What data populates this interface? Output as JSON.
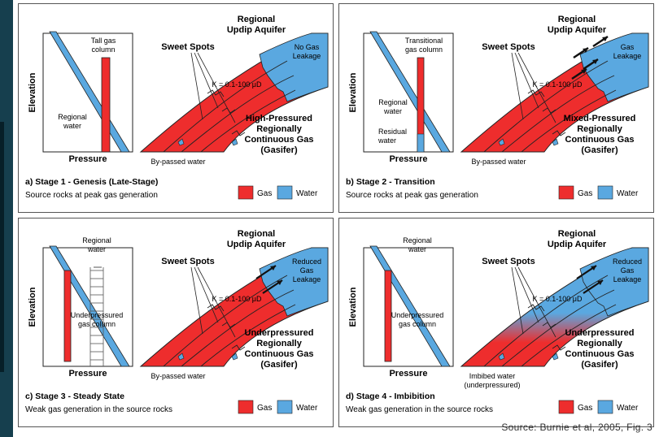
{
  "colors": {
    "gas": "#ee2d2d",
    "water": "#5aa8e0",
    "outline": "#333333",
    "background_strip": "#163f4e"
  },
  "source": "Source: Burnie et al, 2005, Fig. 3",
  "legend": {
    "gas": "Gas",
    "water": "Water"
  },
  "panels": [
    {
      "stage_title": "a) Stage 1 - Genesis (Late-Stage)",
      "subtitle": "Source rocks at peak gas generation",
      "inset_labels": {
        "elevation": "Elevation",
        "pressure": "Pressure",
        "column_1": "Tall gas",
        "column_2": "column",
        "water_1": "Regional",
        "water_2": "water"
      },
      "aquifer_1": "Regional",
      "aquifer_2": "Updip Aquifer",
      "sweet_spots": "Sweet Spots",
      "permeability": "K = 0.1-100 μD",
      "leak_1": "No Gas",
      "leak_2": "Leakage",
      "leak_3": "",
      "gas_1": "High-Pressured",
      "gas_2": "Regionally",
      "gas_3": "Continuous Gas",
      "gas_4": "(Gasifer)",
      "bottom_note_1": "By-passed water",
      "bottom_note_2": ""
    },
    {
      "stage_title": "b) Stage 2 - Transition",
      "subtitle": "Source rocks at peak gas generation",
      "inset_labels": {
        "elevation": "Elevation",
        "pressure": "Pressure",
        "column_1": "Transitional",
        "column_2": "gas column",
        "water_1": "Regional",
        "water_2": "water",
        "residual_1": "Residual",
        "residual_2": "water"
      },
      "aquifer_1": "Regional",
      "aquifer_2": "Updip Aquifer",
      "sweet_spots": "Sweet Spots",
      "permeability": "K = 0.1-100 μD",
      "leak_1": "Gas",
      "leak_2": "Leakage",
      "leak_3": "",
      "gas_1": "Mixed-Pressured",
      "gas_2": "Regionally",
      "gas_3": "Continuous Gas",
      "gas_4": "(Gasifer)",
      "bottom_note_1": "By-passed water",
      "bottom_note_2": ""
    },
    {
      "stage_title": "c) Stage 3 - Steady State",
      "subtitle": "Weak gas generation in the source rocks",
      "inset_labels": {
        "elevation": "Elevation",
        "pressure": "Pressure",
        "column_1": "Underpressured",
        "column_2": "gas column",
        "water_1": "Regional",
        "water_2": "water"
      },
      "aquifer_1": "Regional",
      "aquifer_2": "Updip Aquifer",
      "sweet_spots": "Sweet Spots",
      "permeability": "K = 0.1-100 μD",
      "leak_1": "Reduced",
      "leak_2": "Gas",
      "leak_3": "Leakage",
      "gas_1": "Underpressured",
      "gas_2": "Regionally",
      "gas_3": "Continuous Gas",
      "gas_4": "(Gasifer)",
      "bottom_note_1": "By-passed water",
      "bottom_note_2": ""
    },
    {
      "stage_title": "d) Stage 4 - Imbibition",
      "subtitle": "Weak gas generation in the source rocks",
      "inset_labels": {
        "elevation": "Elevation",
        "pressure": "Pressure",
        "column_1": "Underpressured",
        "column_2": "gas column",
        "water_1": "Regional",
        "water_2": "water"
      },
      "aquifer_1": "Regional",
      "aquifer_2": "Updip Aquifer",
      "sweet_spots": "Sweet Spots",
      "permeability": "K = 0.1-100 μD",
      "leak_1": "Reduced",
      "leak_2": "Gas",
      "leak_3": "Leakage",
      "gas_1": "Underpressured",
      "gas_2": "Regionally",
      "gas_3": "Continuous Gas",
      "gas_4": "(Gasifer)",
      "bottom_note_1": "Imbibed water",
      "bottom_note_2": "(underpressured)"
    }
  ]
}
